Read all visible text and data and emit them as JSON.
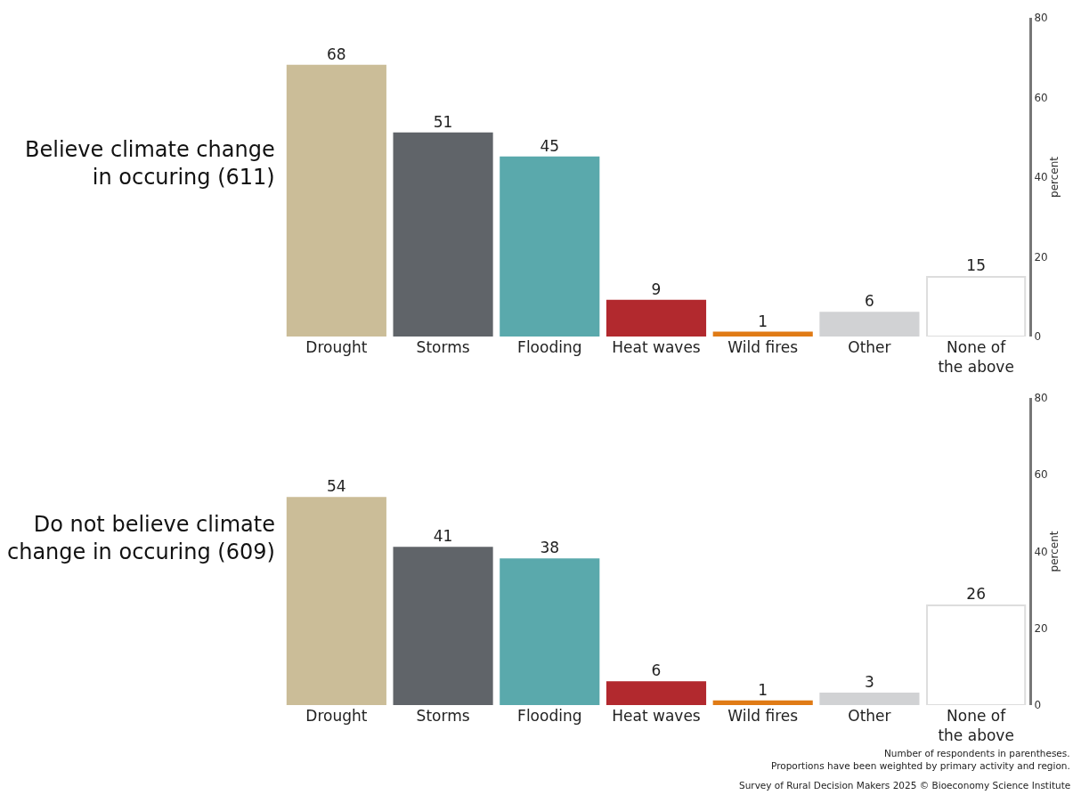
{
  "chart_data": [
    {
      "type": "bar",
      "title": "Believe climate change in occuring (611)",
      "ylabel": "percent",
      "categories": [
        "Drought",
        "Storms",
        "Flooding",
        "Heat waves",
        "Wild fires",
        "Other",
        "None of the above"
      ],
      "values": [
        68,
        51,
        45,
        9,
        1,
        6,
        15
      ],
      "colors": [
        "#cbbd98",
        "#606469",
        "#5aa9ac",
        "#b2292e",
        "#e07b16",
        "#d1d2d4",
        "#ffffff"
      ],
      "ylim": [
        0,
        80
      ],
      "yticks": [
        0,
        20,
        40,
        60,
        80
      ],
      "data_labels": true
    },
    {
      "type": "bar",
      "title": "Do not believe climate change in occuring (609)",
      "ylabel": "percent",
      "categories": [
        "Drought",
        "Storms",
        "Flooding",
        "Heat waves",
        "Wild fires",
        "Other",
        "None of the above"
      ],
      "values": [
        54,
        41,
        38,
        6,
        1,
        3,
        26
      ],
      "colors": [
        "#cbbd98",
        "#606469",
        "#5aa9ac",
        "#b2292e",
        "#e07b16",
        "#d1d2d4",
        "#ffffff"
      ],
      "ylim": [
        0,
        80
      ],
      "yticks": [
        0,
        20,
        40,
        60,
        80
      ],
      "data_labels": true,
      "annotations": [
        "Number of respondents in parentheses.",
        "Proportions have been weighted by primary activity and region.",
        "Survey of Rural Decision Makers 2025 © Bioeconomy Science Institute"
      ]
    }
  ]
}
